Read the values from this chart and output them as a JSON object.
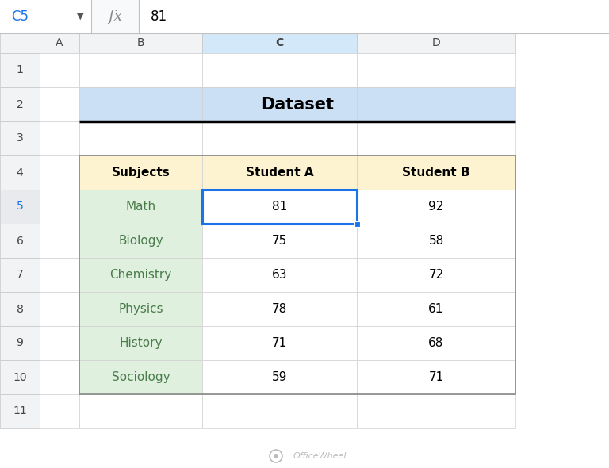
{
  "title": "Dataset",
  "formula_bar_cell": "C5",
  "formula_bar_value": "81",
  "col_headers": [
    "A",
    "B",
    "C",
    "D"
  ],
  "row_numbers": [
    "1",
    "2",
    "3",
    "4",
    "5",
    "6",
    "7",
    "8",
    "9",
    "10",
    "11"
  ],
  "table_headers": [
    "Subjects",
    "Student A",
    "Student B"
  ],
  "subjects": [
    "Math",
    "Biology",
    "Chemistry",
    "Physics",
    "History",
    "Sociology"
  ],
  "student_a": [
    81,
    75,
    63,
    78,
    71,
    59
  ],
  "student_b": [
    92,
    58,
    72,
    61,
    68,
    71
  ],
  "title_bg": "#cce0f5",
  "header_bg": "#fdf3d0",
  "subject_bg": "#dff0df",
  "data_bg": "#ffffff",
  "selected_cell_border": "#1a73e8",
  "grid_color": "#d0d0d0",
  "sheet_bg": "#ffffff",
  "col_header_bg": "#f1f3f4",
  "row_header_bg": "#f1f3f4",
  "selected_col_header_bg": "#d3e8f8",
  "selected_row_header_bg": "#e8eaed",
  "title_text_color": "#000000",
  "header_text_color": "#000000",
  "subject_text_color": "#4a7c4a",
  "data_text_color": "#000000",
  "watermark_color": "#bbbbbb",
  "fig_width": 7.68,
  "fig_height": 5.9,
  "dpi": 100
}
